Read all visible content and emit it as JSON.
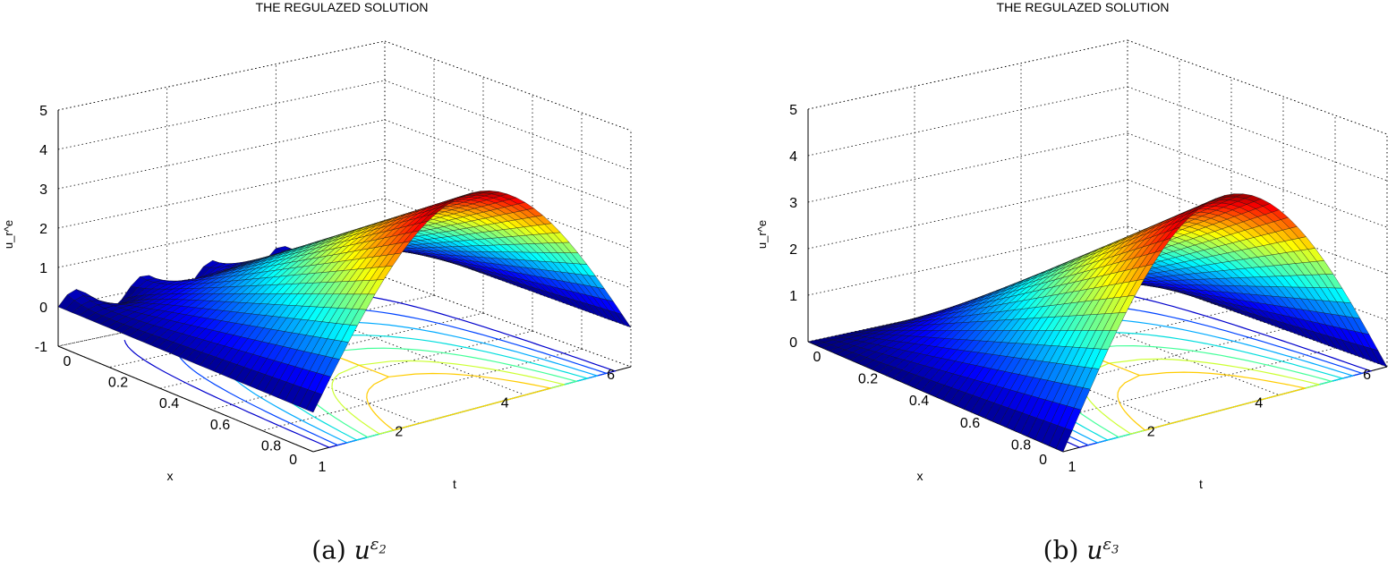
{
  "charts": [
    {
      "id": "a",
      "type": "surface",
      "title": "THE REGULAZED SOLUTION",
      "xlabel": "x",
      "ylabel": "t",
      "zlabel": "u_r^e",
      "x_ticks": [
        "0",
        "2",
        "4",
        "6"
      ],
      "t_ticks": [
        "0",
        "0.2",
        "0.4",
        "0.6",
        "0.8",
        "1"
      ],
      "z_ticks": [
        "-1",
        "0",
        "1",
        "2",
        "3",
        "4",
        "5"
      ],
      "caption_label": "(a)",
      "caption_math": "u",
      "caption_sup": "ε",
      "caption_sub": "2"
    },
    {
      "id": "b",
      "type": "surface",
      "title": "THE REGULAZED SOLUTION",
      "xlabel": "x",
      "ylabel": "t",
      "zlabel": "u_r^e",
      "x_ticks": [
        "0",
        "2",
        "4",
        "6"
      ],
      "t_ticks": [
        "0",
        "0.2",
        "0.4",
        "0.6",
        "0.8",
        "1"
      ],
      "z_ticks": [
        "0",
        "1",
        "2",
        "3",
        "4",
        "5"
      ],
      "caption_label": "(b)",
      "caption_math": "u",
      "caption_sup": "ε",
      "caption_sub": "3"
    }
  ],
  "chart_data": [
    {
      "type": "surface",
      "title": "THE REGULAZED SOLUTION",
      "xlabel": "x",
      "ylabel": "t",
      "zlabel": "u_r^e",
      "xlim": [
        0,
        6
      ],
      "tlim": [
        0,
        1
      ],
      "zlim": [
        -1,
        5
      ],
      "colormap": "jet",
      "peak": {
        "t": 1,
        "x": 3,
        "value": 4.5
      },
      "features": "oscillations near t=0, contour lines on base plane"
    },
    {
      "type": "surface",
      "title": "THE REGULAZED SOLUTION",
      "xlabel": "x",
      "ylabel": "t",
      "zlabel": "u_r^e",
      "xlim": [
        0,
        6
      ],
      "tlim": [
        0,
        1
      ],
      "zlim": [
        0,
        5
      ],
      "colormap": "jet",
      "peak": {
        "t": 1,
        "x": 3,
        "value": 4.6
      },
      "features": "smooth surface, contour lines on base plane"
    }
  ]
}
